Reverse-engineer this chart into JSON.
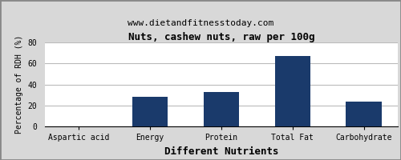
{
  "title": "Nuts, cashew nuts, raw per 100g",
  "subtitle": "www.dietandfitnesstoday.com",
  "xlabel": "Different Nutrients",
  "ylabel": "Percentage of RDH (%)",
  "categories": [
    "Aspartic acid",
    "Energy",
    "Protein",
    "Total Fat",
    "Carbohydrate"
  ],
  "values": [
    0,
    28,
    33,
    67,
    24
  ],
  "bar_color": "#1a3a6b",
  "ylim": [
    0,
    80
  ],
  "yticks": [
    0,
    20,
    40,
    60,
    80
  ],
  "background_color": "#d8d8d8",
  "plot_bg_color": "#ffffff",
  "title_fontsize": 9,
  "subtitle_fontsize": 8,
  "xlabel_fontsize": 9,
  "ylabel_fontsize": 7,
  "tick_fontsize": 7,
  "grid_color": "#bbbbbb",
  "border_color": "#888888"
}
